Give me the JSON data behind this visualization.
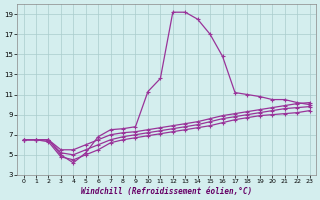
{
  "background_color": "#d4eeee",
  "line_color": "#993399",
  "grid_color": "#aacccc",
  "xlabel": "Windchill (Refroidissement éolien,°C)",
  "xlim": [
    -0.5,
    23.5
  ],
  "ylim": [
    3,
    20
  ],
  "yticks": [
    3,
    5,
    7,
    9,
    11,
    13,
    15,
    17,
    19
  ],
  "xticks": [
    0,
    1,
    2,
    3,
    4,
    5,
    6,
    7,
    8,
    9,
    10,
    11,
    12,
    13,
    14,
    15,
    16,
    17,
    18,
    19,
    20,
    21,
    22,
    23
  ],
  "main_x": [
    0,
    1,
    2,
    3,
    4,
    5,
    6,
    7,
    8,
    9,
    10,
    11,
    12,
    13,
    14,
    15,
    16,
    17,
    18,
    19,
    20,
    21,
    22,
    23
  ],
  "main_y": [
    6.5,
    6.5,
    6.5,
    5.0,
    4.2,
    5.2,
    6.8,
    7.5,
    7.6,
    7.8,
    11.3,
    12.6,
    19.2,
    19.2,
    18.5,
    17.0,
    14.8,
    11.2,
    11.0,
    10.8,
    10.5,
    10.5,
    10.2,
    10.0
  ],
  "line2_x": [
    0,
    1,
    2,
    3,
    4,
    5,
    6,
    7,
    8,
    9,
    10,
    11,
    12,
    13,
    14,
    15,
    16,
    17,
    18,
    19,
    20,
    21,
    22,
    23
  ],
  "line2_y": [
    6.5,
    6.5,
    6.5,
    5.5,
    5.5,
    6.0,
    6.5,
    7.0,
    7.2,
    7.3,
    7.5,
    7.7,
    7.9,
    8.1,
    8.3,
    8.6,
    8.9,
    9.1,
    9.3,
    9.5,
    9.7,
    9.9,
    10.1,
    10.2
  ],
  "line3_x": [
    0,
    1,
    2,
    3,
    4,
    5,
    6,
    7,
    8,
    9,
    10,
    11,
    12,
    13,
    14,
    15,
    16,
    17,
    18,
    19,
    20,
    21,
    22,
    23
  ],
  "line3_y": [
    6.5,
    6.5,
    6.5,
    5.2,
    5.0,
    5.5,
    6.0,
    6.5,
    6.8,
    7.0,
    7.2,
    7.4,
    7.6,
    7.8,
    8.0,
    8.3,
    8.6,
    8.8,
    9.0,
    9.2,
    9.4,
    9.6,
    9.7,
    9.8
  ],
  "line4_x": [
    0,
    1,
    2,
    3,
    4,
    5,
    6,
    7,
    8,
    9,
    10,
    11,
    12,
    13,
    14,
    15,
    16,
    17,
    18,
    19,
    20,
    21,
    22,
    23
  ],
  "line4_y": [
    6.5,
    6.5,
    6.3,
    4.8,
    4.5,
    5.0,
    5.5,
    6.2,
    6.5,
    6.7,
    6.9,
    7.1,
    7.3,
    7.5,
    7.7,
    7.9,
    8.2,
    8.5,
    8.7,
    8.9,
    9.0,
    9.1,
    9.2,
    9.4
  ]
}
